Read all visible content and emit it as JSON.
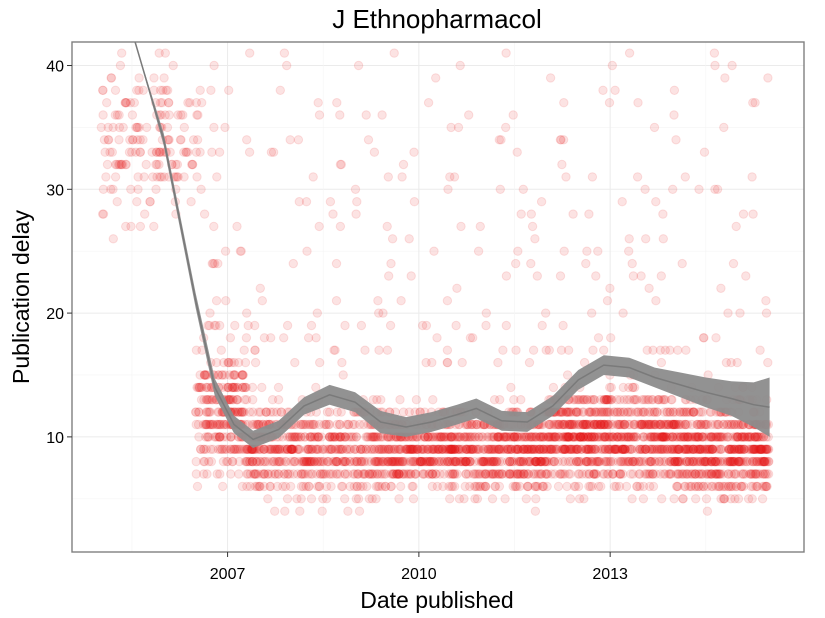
{
  "chart_data": {
    "type": "scatter",
    "title": "J Ethnopharmacol",
    "xlabel": "Date published",
    "ylabel": "Publication delay",
    "x_ticks": [
      "2007",
      "2010",
      "2013"
    ],
    "y_ticks": [
      10,
      20,
      30,
      40
    ],
    "xlim": [
      2004.56,
      2016.04
    ],
    "ylim": [
      0.7,
      41.9
    ],
    "point_color": "#e31a1c",
    "point_alpha": 0.12,
    "smooth_color": "#8c8c8c",
    "grid": true,
    "legend": "none",
    "seed": 7,
    "note_points": "cloud of points approximated by per-period band distributions",
    "point_bands": [
      {
        "x_start": 2005.0,
        "x_end": 2006.6,
        "n": 170,
        "y_center": 34,
        "y_spread": 9
      },
      {
        "x_start": 2006.5,
        "x_end": 2007.3,
        "n": 260,
        "y_center": 12,
        "y_spread": 8
      },
      {
        "x_start": 2007.3,
        "x_end": 2009.3,
        "n": 520,
        "y_center": 9,
        "y_spread": 6
      },
      {
        "x_start": 2009.3,
        "x_end": 2012.0,
        "n": 880,
        "y_center": 9,
        "y_spread": 5
      },
      {
        "x_start": 2012.0,
        "x_end": 2014.0,
        "n": 800,
        "y_center": 10,
        "y_spread": 6
      },
      {
        "x_start": 2014.0,
        "x_end": 2015.5,
        "n": 620,
        "y_center": 9,
        "y_spread": 6
      }
    ],
    "outlier_bands": [
      {
        "x_start": 2006.6,
        "x_end": 2015.5,
        "n": 260,
        "y_min": 16,
        "y_max": 41
      }
    ],
    "smooth": {
      "x": [
        2005.55,
        2006.0,
        2006.5,
        2006.8,
        2007.1,
        2007.4,
        2007.8,
        2008.2,
        2008.6,
        2009.0,
        2009.4,
        2009.8,
        2010.2,
        2010.6,
        2010.9,
        2011.3,
        2011.7,
        2012.1,
        2012.5,
        2012.9,
        2013.3,
        2013.7,
        2014.1,
        2014.5,
        2014.9,
        2015.25,
        2015.5
      ],
      "y": [
        42.5,
        34.0,
        21.0,
        14.0,
        11.0,
        9.8,
        10.6,
        12.5,
        13.4,
        12.8,
        11.2,
        10.8,
        11.2,
        11.8,
        12.3,
        11.3,
        11.2,
        12.5,
        14.6,
        15.8,
        15.6,
        14.8,
        14.2,
        13.6,
        13.1,
        12.6,
        12.4
      ],
      "upper": [
        42.9,
        34.5,
        21.6,
        14.7,
        11.7,
        10.5,
        11.3,
        13.2,
        14.2,
        13.6,
        12.1,
        11.6,
        12.0,
        12.6,
        13.1,
        12.1,
        12.0,
        13.3,
        15.4,
        16.6,
        16.4,
        15.6,
        15.2,
        14.8,
        14.5,
        14.4,
        14.8
      ],
      "lower": [
        42.1,
        33.5,
        20.4,
        13.3,
        10.3,
        9.1,
        9.9,
        11.8,
        12.6,
        12.0,
        10.3,
        10.0,
        10.4,
        11.0,
        11.5,
        10.5,
        10.4,
        11.7,
        13.8,
        15.0,
        14.8,
        14.0,
        13.2,
        12.4,
        11.7,
        10.8,
        10.0
      ]
    }
  }
}
